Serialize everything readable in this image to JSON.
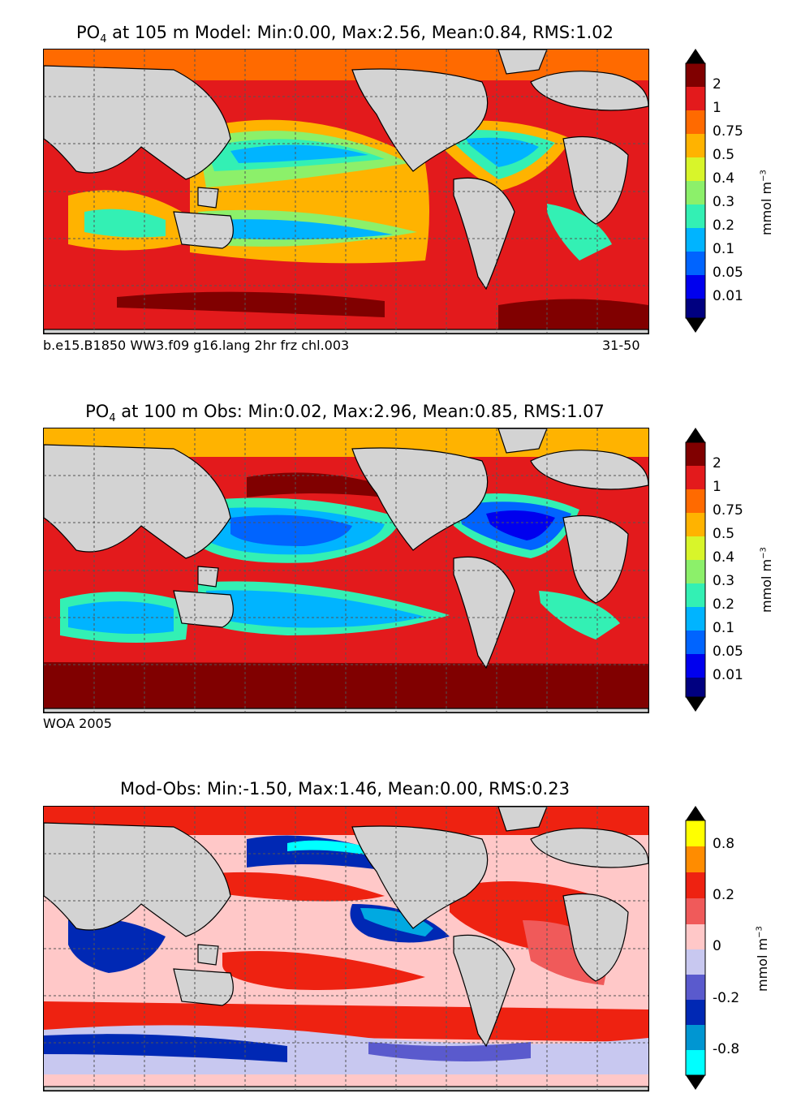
{
  "panels": [
    {
      "title_pre": "PO",
      "title_sub": "4",
      "title_post": " at 105 m Model: Min:0.00, Max:2.56, Mean:0.84, RMS:1.02",
      "caption_left": "b.e15.B1850 WW3.f09 g16.lang 2hr frz chl.003",
      "caption_right": "31-50",
      "colorbar": {
        "ticks": [
          "2",
          "1",
          "0.75",
          "0.5",
          "0.4",
          "0.3",
          "0.2",
          "0.1",
          "0.05",
          "0.01"
        ],
        "colors": [
          "#800000",
          "#e31a1c",
          "#ff6a00",
          "#ffb300",
          "#d8f52a",
          "#8cf06a",
          "#33f0b4",
          "#00b4ff",
          "#0064ff",
          "#0000ee",
          "#000080"
        ],
        "unit": "mmol m",
        "unit_sup": "−3"
      }
    },
    {
      "title_pre": "PO",
      "title_sub": "4",
      "title_post": " at 100 m Obs: Min:0.02, Max:2.96, Mean:0.85, RMS:1.07",
      "caption_left": "WOA 2005",
      "caption_right": "",
      "colorbar": {
        "ticks": [
          "2",
          "1",
          "0.75",
          "0.5",
          "0.4",
          "0.3",
          "0.2",
          "0.1",
          "0.05",
          "0.01"
        ],
        "colors": [
          "#800000",
          "#e31a1c",
          "#ff6a00",
          "#ffb300",
          "#d8f52a",
          "#8cf06a",
          "#33f0b4",
          "#00b4ff",
          "#0064ff",
          "#0000ee",
          "#000080"
        ],
        "unit": "mmol m",
        "unit_sup": "−3"
      }
    },
    {
      "title_pre": "",
      "title_sub": "",
      "title_post": "Mod-Obs: Min:-1.50, Max:1.46, Mean:0.00, RMS:0.23",
      "caption_left": "",
      "caption_right": "",
      "colorbar": {
        "ticks": [
          "0.8",
          "0.2",
          "0",
          "-0.2",
          "-0.8"
        ],
        "colors": [
          "#ffff00",
          "#ff8c00",
          "#ee2211",
          "#f05a5a",
          "#ffc8c8",
          "#c8c8f0",
          "#5a5acd",
          "#0028b4",
          "#0096d2",
          "#00ffff"
        ],
        "unit": "mmol m",
        "unit_sup": "−3"
      }
    }
  ]
}
